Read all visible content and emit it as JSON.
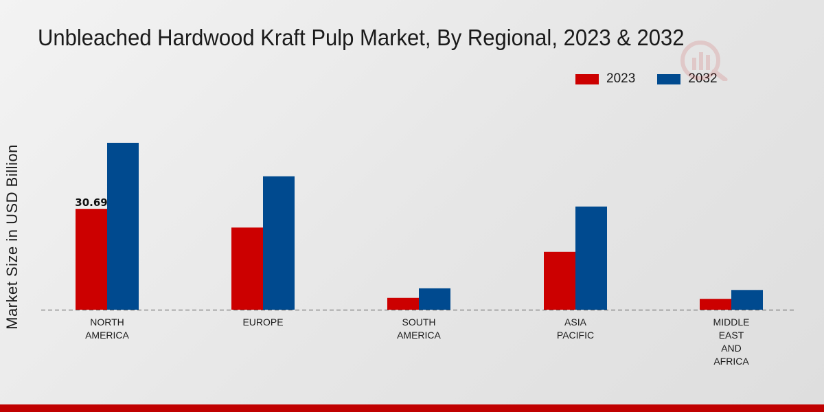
{
  "chart_data": {
    "type": "bar",
    "title": "Unbleached Hardwood Kraft Pulp Market, By Regional, 2023 & 2032",
    "xlabel": "",
    "ylabel": "Market Size in USD Billion",
    "categories": [
      "NORTH\nAMERICA",
      "EUROPE",
      "SOUTH\nAMERICA",
      "ASIA\nPACIFIC",
      "MIDDLE\nEAST\nAND\nAFRICA"
    ],
    "series": [
      {
        "name": "2023",
        "color": "#cc0000",
        "values": [
          30.69,
          25.0,
          3.6,
          17.6,
          3.3
        ]
      },
      {
        "name": "2032",
        "color": "#004a8f",
        "values": [
          50.8,
          40.6,
          6.5,
          31.4,
          6.0
        ]
      }
    ],
    "data_labels": [
      {
        "series": 0,
        "index": 0,
        "text": "30.69"
      }
    ],
    "ylim": [
      0,
      65
    ],
    "grid": false,
    "legend_position": "top-right"
  }
}
